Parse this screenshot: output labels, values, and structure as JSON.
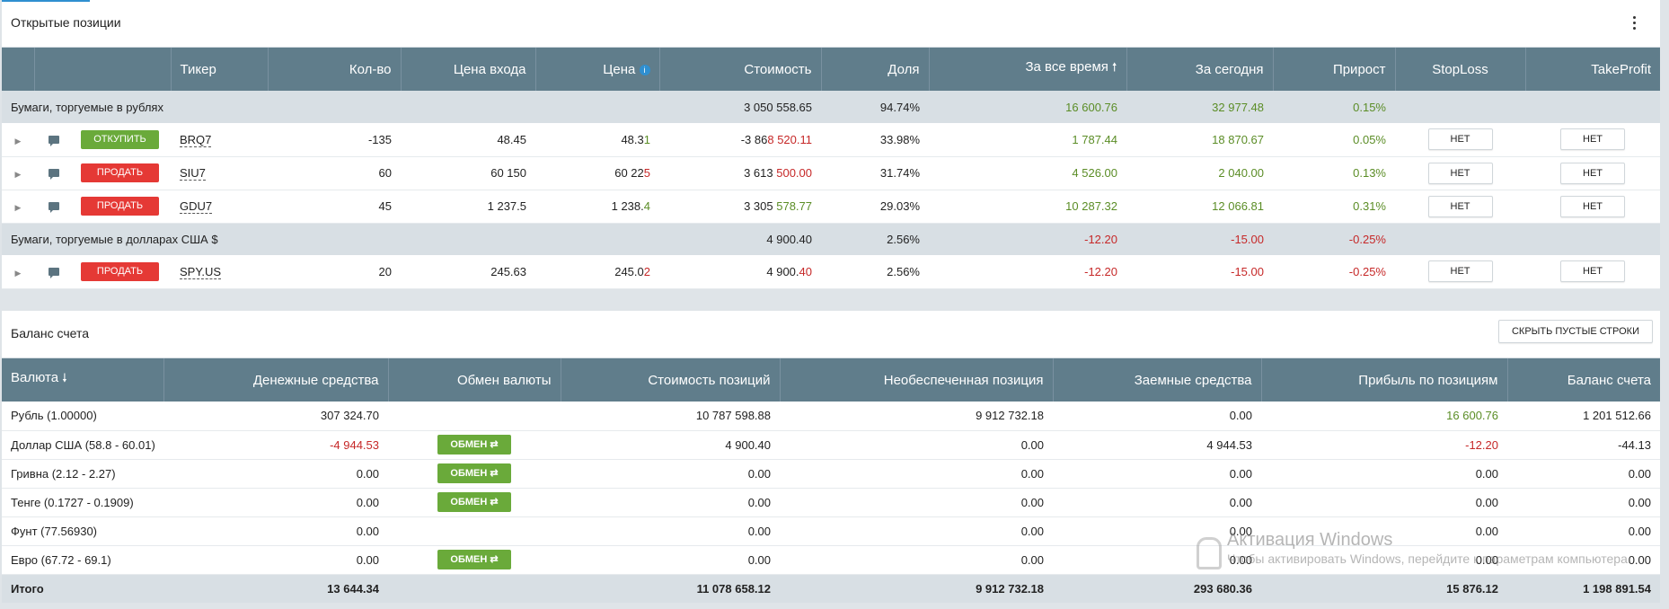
{
  "positions": {
    "title": "Открытые позиции",
    "columns": [
      "",
      "",
      "Тикер",
      "Кол-во",
      "Цена входа",
      "Цена",
      "Стоимость",
      "Доля",
      "За все время",
      "За сегодня",
      "Прирост",
      "StopLoss",
      "TakeProfit"
    ],
    "groups": [
      {
        "label": "Бумаги, торгуемые в рублях",
        "value": "3 050 558.65",
        "share": "94.74%",
        "all_time": "16 600.76",
        "today": "32 977.48",
        "growth": "0.15%",
        "rows": [
          {
            "action": "ОТКУПИТЬ",
            "type": "buy",
            "ticker": "BRQ7",
            "qty": "-135",
            "entry": "48.45",
            "price_a": "48.3",
            "price_b": "1",
            "price_color": "green",
            "cost_a": "-3 86",
            "cost_b": "8 520.11",
            "cost_color": "red",
            "share": "33.98%",
            "all_time": "1 787.44",
            "today": "18 870.67",
            "growth": "0.05%",
            "sl": "НЕТ",
            "tp": "НЕТ"
          },
          {
            "action": "ПРОДАТЬ",
            "type": "sell",
            "ticker": "SIU7",
            "qty": "60",
            "entry": "60 150",
            "price_a": "60 22",
            "price_b": "5",
            "price_color": "red",
            "cost_a": "3 613 ",
            "cost_b": "500.00",
            "cost_color": "red",
            "share": "31.74%",
            "all_time": "4 526.00",
            "today": "2 040.00",
            "growth": "0.13%",
            "sl": "НЕТ",
            "tp": "НЕТ"
          },
          {
            "action": "ПРОДАТЬ",
            "type": "sell",
            "ticker": "GDU7",
            "qty": "45",
            "entry": "1 237.5",
            "price_a": "1 238.",
            "price_b": "4",
            "price_color": "green",
            "cost_a": "3 305 ",
            "cost_b": "578.77",
            "cost_color": "green",
            "share": "29.03%",
            "all_time": "10 287.32",
            "today": "12 066.81",
            "growth": "0.31%",
            "sl": "НЕТ",
            "tp": "НЕТ"
          }
        ]
      },
      {
        "label": "Бумаги, торгуемые в долларах США $",
        "value": "4 900.40",
        "share": "2.56%",
        "all_time": "-12.20",
        "today": "-15.00",
        "growth": "-0.25%",
        "rows": [
          {
            "action": "ПРОДАТЬ",
            "type": "sell",
            "ticker": "SPY.US",
            "qty": "20",
            "entry": "245.63",
            "price_a": "245.0",
            "price_b": "2",
            "price_color": "red",
            "cost_a": "4 900.",
            "cost_b": "40",
            "cost_color": "red",
            "share": "2.56%",
            "all_time": "-12.20",
            "today": "-15.00",
            "growth": "-0.25%",
            "sl": "НЕТ",
            "tp": "НЕТ"
          }
        ]
      }
    ]
  },
  "balance": {
    "title": "Баланс счета",
    "hide_button": "СКРЫТЬ ПУСТЫЕ СТРОКИ",
    "columns": [
      "Валюта",
      "Денежные средства",
      "Обмен валюты",
      "Стоимость позиций",
      "Необеспеченная позиция",
      "Заемные средства",
      "Прибыль по позициям",
      "Баланс счета"
    ],
    "exchange_label": "ОБМЕН ⇄",
    "rows": [
      {
        "currency": "Рубль (1.00000)",
        "cash": "307 324.70",
        "cash_color": "",
        "exchange": false,
        "positions": "10 787 598.88",
        "unsecured": "9 912 732.18",
        "borrowed": "0.00",
        "profit": "16 600.76",
        "profit_color": "green",
        "balance": "1 201 512.66"
      },
      {
        "currency": "Доллар США (58.8 - 60.01)",
        "cash": "-4 944.53",
        "cash_color": "red",
        "exchange": true,
        "positions": "4 900.40",
        "unsecured": "0.00",
        "borrowed": "4 944.53",
        "profit": "-12.20",
        "profit_color": "red",
        "balance": "-44.13"
      },
      {
        "currency": "Гривна (2.12 - 2.27)",
        "cash": "0.00",
        "cash_color": "",
        "exchange": true,
        "positions": "0.00",
        "unsecured": "0.00",
        "borrowed": "0.00",
        "profit": "0.00",
        "profit_color": "",
        "balance": "0.00"
      },
      {
        "currency": "Тенге (0.1727 - 0.1909)",
        "cash": "0.00",
        "cash_color": "",
        "exchange": true,
        "positions": "0.00",
        "unsecured": "0.00",
        "borrowed": "0.00",
        "profit": "0.00",
        "profit_color": "",
        "balance": "0.00"
      },
      {
        "currency": "Фунт (77.56930)",
        "cash": "0.00",
        "cash_color": "",
        "exchange": false,
        "positions": "0.00",
        "unsecured": "0.00",
        "borrowed": "0.00",
        "profit": "0.00",
        "profit_color": "",
        "balance": "0.00"
      },
      {
        "currency": "Евро (67.72 - 69.1)",
        "cash": "0.00",
        "cash_color": "",
        "exchange": true,
        "positions": "0.00",
        "unsecured": "0.00",
        "borrowed": "0.00",
        "profit": "0.00",
        "profit_color": "",
        "balance": "0.00"
      }
    ],
    "total": {
      "label": "Итого",
      "cash": "13 644.34",
      "positions": "11 078 658.12",
      "unsecured": "9 912 732.18",
      "borrowed": "293 680.36",
      "profit": "15 876.12",
      "balance": "1 198 891.54"
    }
  },
  "watermark": {
    "title": "Активация Windows",
    "text": "Чтобы активировать Windows, перейдите к параметрам компьютера."
  }
}
